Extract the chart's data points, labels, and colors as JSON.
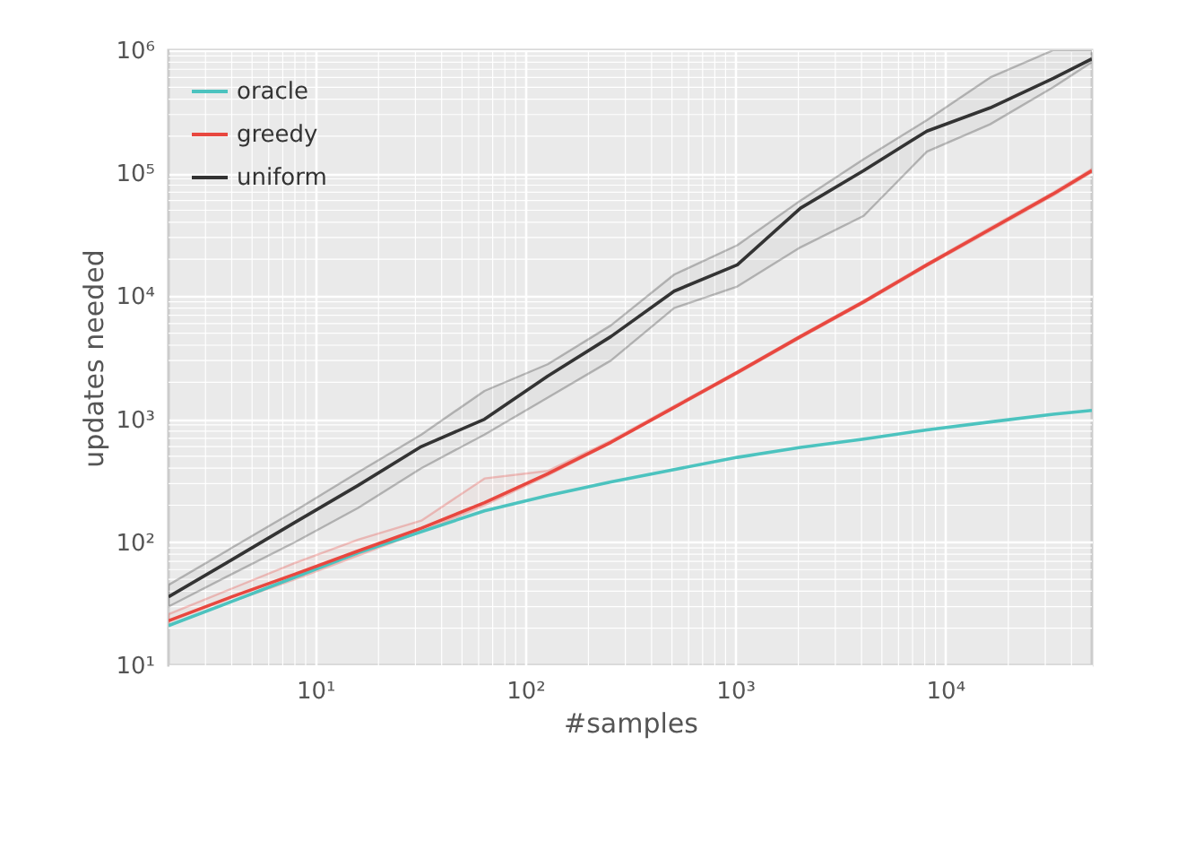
{
  "chart_data": {
    "type": "line",
    "xlabel": "#samples",
    "ylabel": "updates needed",
    "x": [
      2,
      4,
      8,
      16,
      32,
      64,
      128,
      256,
      512,
      1024,
      2048,
      4096,
      8192,
      16384,
      32768,
      50000
    ],
    "series": [
      {
        "name": "oracle",
        "color": "#4cc3bf",
        "values": [
          21,
          33,
          52,
          82,
          122,
          180,
          240,
          310,
          390,
          490,
          590,
          690,
          820,
          950,
          1100,
          1180
        ]
      },
      {
        "name": "greedy",
        "color": "#e8473f",
        "values": [
          23,
          36,
          55,
          85,
          130,
          210,
          360,
          650,
          1250,
          2400,
          4700,
          9000,
          18000,
          35000,
          68000,
          105000
        ],
        "lower": [
          21,
          33,
          50,
          78,
          122,
          200,
          350,
          640,
          1230,
          2350,
          4600,
          8800,
          17600,
          34000,
          66000,
          102000
        ],
        "upper": [
          26,
          42,
          68,
          105,
          150,
          330,
          380,
          670,
          1280,
          2450,
          4800,
          9200,
          18400,
          36000,
          70000,
          108000
        ]
      },
      {
        "name": "uniform",
        "color": "#333333",
        "values": [
          36,
          72,
          145,
          290,
          600,
          1000,
          2240,
          4700,
          11000,
          18000,
          52000,
          105000,
          220000,
          340000,
          590000,
          850000
        ],
        "lower": [
          30,
          55,
          100,
          190,
          400,
          750,
          1500,
          3000,
          8000,
          12000,
          25000,
          45000,
          150000,
          250000,
          500000,
          800000
        ],
        "upper": [
          45,
          90,
          180,
          370,
          750,
          1700,
          2800,
          5800,
          15000,
          26000,
          60000,
          130000,
          270000,
          600000,
          1000000,
          1000000
        ]
      }
    ],
    "log": "xy",
    "xlim": [
      2,
      50000
    ],
    "ylim": [
      10,
      1000000
    ],
    "xticks": [
      {
        "value": 10,
        "label": "10¹"
      },
      {
        "value": 100,
        "label": "10²"
      },
      {
        "value": 1000,
        "label": "10³"
      },
      {
        "value": 10000,
        "label": "10⁴"
      }
    ],
    "yticks": [
      {
        "value": 10,
        "label": "10¹"
      },
      {
        "value": 100,
        "label": "10²"
      },
      {
        "value": 1000,
        "label": "10³"
      },
      {
        "value": 10000,
        "label": "10⁴"
      },
      {
        "value": 100000,
        "label": "10⁵"
      },
      {
        "value": 1000000,
        "label": "10⁶"
      }
    ],
    "grid": true,
    "legend": "top left",
    "marker": "none",
    "line_style": "solid"
  }
}
